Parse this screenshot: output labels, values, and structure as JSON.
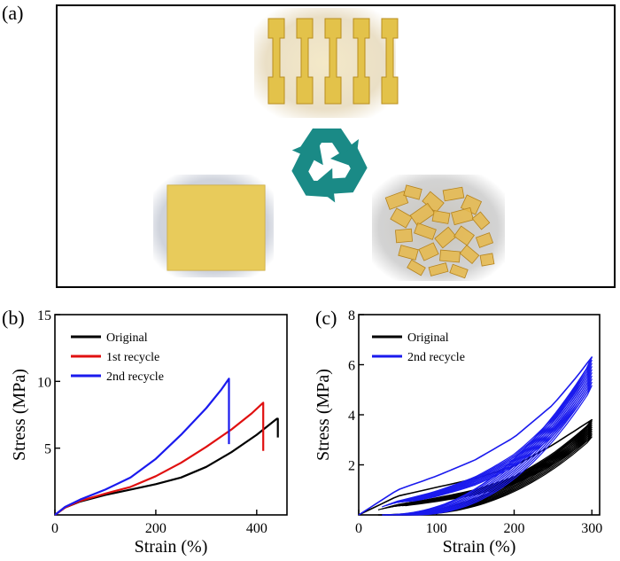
{
  "panel_labels": {
    "a": "(a)",
    "b": "(b)",
    "c": "(c)"
  },
  "colors": {
    "original": "#000000",
    "recycle1": "#e01010",
    "recycle2": "#1a1aee",
    "recycle_symbol": "#1a8a86",
    "sample_yellow": "#e3c24a"
  },
  "photo": {
    "items": [
      "dumbbell-specimens",
      "recycle-symbol",
      "square-film",
      "cut-fragments"
    ]
  },
  "chart_data": [
    {
      "type": "line",
      "panel": "b",
      "title": "",
      "xlabel": "Strain (%)",
      "ylabel": "Stress (MPa)",
      "xlim": [
        0,
        460
      ],
      "ylim": [
        0,
        15
      ],
      "xticks": [
        0,
        200,
        400
      ],
      "yticks": [
        5,
        10,
        15
      ],
      "legend_position": "top-left",
      "series": [
        {
          "name": "Original",
          "color": "#000000",
          "x": [
            0,
            20,
            50,
            100,
            150,
            200,
            250,
            300,
            350,
            400,
            430,
            440,
            442,
            442
          ],
          "y": [
            0,
            0.55,
            1.0,
            1.5,
            1.9,
            2.3,
            2.8,
            3.6,
            4.7,
            6.0,
            6.9,
            7.2,
            7.2,
            5.8
          ]
        },
        {
          "name": "1st recycle",
          "color": "#e01010",
          "x": [
            0,
            20,
            50,
            100,
            150,
            200,
            250,
            300,
            350,
            390,
            410,
            413,
            413
          ],
          "y": [
            0,
            0.55,
            1.05,
            1.6,
            2.1,
            2.9,
            3.9,
            5.1,
            6.4,
            7.6,
            8.3,
            8.4,
            4.8
          ]
        },
        {
          "name": "2nd recycle",
          "color": "#1a1aee",
          "x": [
            0,
            20,
            50,
            100,
            150,
            200,
            250,
            300,
            330,
            345,
            345
          ],
          "y": [
            0,
            0.6,
            1.15,
            1.9,
            2.8,
            4.2,
            6.0,
            8.0,
            9.4,
            10.2,
            5.3
          ]
        }
      ]
    },
    {
      "type": "line",
      "panel": "c",
      "title": "",
      "xlabel": "Strain (%)",
      "ylabel": "Stress (MPa)",
      "xlim": [
        0,
        310
      ],
      "ylim": [
        0,
        8
      ],
      "xticks": [
        0,
        100,
        200,
        300
      ],
      "yticks": [
        2,
        4,
        6,
        8
      ],
      "legend_position": "top-left",
      "cycles": 10,
      "series": [
        {
          "name": "Original",
          "color": "#000000",
          "load_x": [
            0,
            50,
            100,
            150,
            200,
            250,
            280,
            300
          ],
          "load_y": [
            0,
            0.75,
            1.1,
            1.45,
            1.95,
            2.8,
            3.4,
            3.8
          ],
          "max_stress": 3.8,
          "residual_strain_first": 25,
          "residual_strain_last": 60
        },
        {
          "name": "2nd recycle",
          "color": "#1a1aee",
          "load_x": [
            0,
            50,
            100,
            150,
            200,
            250,
            280,
            300
          ],
          "load_y": [
            0,
            1.0,
            1.55,
            2.2,
            3.1,
            4.4,
            5.5,
            6.3
          ],
          "max_stress": 6.3,
          "residual_strain_first": 30,
          "residual_strain_last": 70
        }
      ]
    }
  ]
}
